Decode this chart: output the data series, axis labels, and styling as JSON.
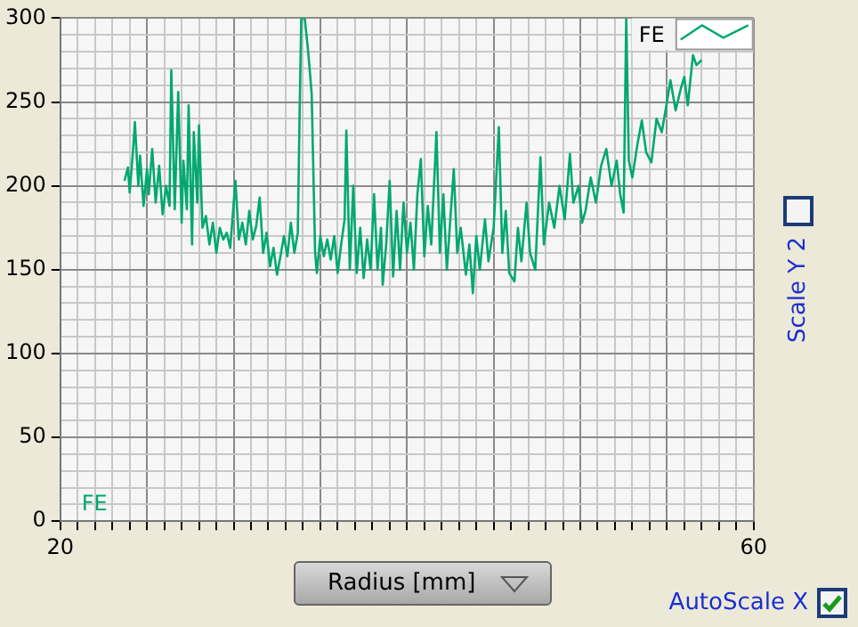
{
  "chart_data": {
    "type": "line",
    "xlabel": "Radius [mm]",
    "legend": "top right",
    "grid": true,
    "marker": "none",
    "line_style": "solid",
    "xlim": [
      20,
      60
    ],
    "ylim": [
      0,
      300
    ],
    "xticks": [
      20,
      {
        "value": 21,
        "label": null
      },
      {
        "value": 22,
        "label": null
      },
      {
        "value": 23,
        "label": null
      },
      {
        "value": 24,
        "label": null
      },
      {
        "value": 25,
        "label": null
      },
      {
        "value": 26,
        "label": null
      },
      {
        "value": 27,
        "label": null
      },
      {
        "value": 28,
        "label": null
      },
      {
        "value": 29,
        "label": null
      },
      {
        "value": 30,
        "label": null
      },
      {
        "value": 31,
        "label": null
      },
      {
        "value": 32,
        "label": null
      },
      {
        "value": 33,
        "label": null
      },
      {
        "value": 34,
        "label": null
      },
      {
        "value": 35,
        "label": null
      },
      {
        "value": 36,
        "label": null
      },
      {
        "value": 37,
        "label": null
      },
      {
        "value": 38,
        "label": null
      },
      {
        "value": 39,
        "label": null
      },
      {
        "value": 40,
        "label": null
      },
      {
        "value": 41,
        "label": null
      },
      {
        "value": 42,
        "label": null
      },
      {
        "value": 43,
        "label": null
      },
      {
        "value": 44,
        "label": null
      },
      {
        "value": 45,
        "label": null
      },
      {
        "value": 46,
        "label": null
      },
      {
        "value": 47,
        "label": null
      },
      {
        "value": 48,
        "label": null
      },
      {
        "value": 49,
        "label": null
      },
      {
        "value": 50,
        "label": null
      },
      {
        "value": 51,
        "label": null
      },
      {
        "value": 52,
        "label": null
      },
      {
        "value": 53,
        "label": null
      },
      {
        "value": 54,
        "label": null
      },
      {
        "value": 55,
        "label": null
      },
      {
        "value": 56,
        "label": null
      },
      {
        "value": 57,
        "label": null
      },
      {
        "value": 58,
        "label": null
      },
      {
        "value": 59,
        "label": null
      },
      60
    ],
    "yticks": [
      0,
      {
        "value": 10,
        "label": null
      },
      {
        "value": 20,
        "label": null
      },
      {
        "value": 30,
        "label": null
      },
      {
        "value": 40,
        "label": null
      },
      50,
      {
        "value": 60,
        "label": null
      },
      {
        "value": 70,
        "label": null
      },
      {
        "value": 80,
        "label": null
      },
      {
        "value": 90,
        "label": null
      },
      100,
      {
        "value": 110,
        "label": null
      },
      {
        "value": 120,
        "label": null
      },
      {
        "value": 130,
        "label": null
      },
      {
        "value": 140,
        "label": null
      },
      150,
      {
        "value": 160,
        "label": null
      },
      {
        "value": 170,
        "label": null
      },
      {
        "value": 180,
        "label": null
      },
      {
        "value": 190,
        "label": null
      },
      200,
      {
        "value": 210,
        "label": null
      },
      {
        "value": 220,
        "label": null
      },
      {
        "value": 230,
        "label": null
      },
      {
        "value": 240,
        "label": null
      },
      250,
      {
        "value": 260,
        "label": null
      },
      {
        "value": 270,
        "label": null
      },
      {
        "value": 280,
        "label": null
      },
      {
        "value": 290,
        "label": null
      },
      300
    ],
    "annotations": [
      "FE",
      "Scale Y 2",
      "AutoScale X"
    ],
    "series": [
      {
        "name": "FE",
        "color": "#00a870",
        "x": [
          23.7,
          23.9,
          24.0,
          24.2,
          24.3,
          24.5,
          24.6,
          24.8,
          25.0,
          25.1,
          25.3,
          25.5,
          25.7,
          25.9,
          26.1,
          26.3,
          26.4,
          26.6,
          26.8,
          27.0,
          27.1,
          27.3,
          27.4,
          27.6,
          27.7,
          27.9,
          28.0,
          28.2,
          28.4,
          28.6,
          28.8,
          29.0,
          29.2,
          29.4,
          29.6,
          29.8,
          30.1,
          30.3,
          30.5,
          30.7,
          30.9,
          31.1,
          31.3,
          31.5,
          31.7,
          31.9,
          32.1,
          32.3,
          32.5,
          32.7,
          32.9,
          33.1,
          33.3,
          33.5,
          33.7,
          33.8,
          33.9,
          34.1,
          34.3,
          34.5,
          34.7,
          34.8,
          35.0,
          35.2,
          35.4,
          35.6,
          35.8,
          36.0,
          36.2,
          36.4,
          36.5,
          36.7,
          36.9,
          37.1,
          37.3,
          37.5,
          37.7,
          37.9,
          38.1,
          38.3,
          38.5,
          38.6,
          38.8,
          39.0,
          39.2,
          39.4,
          39.6,
          39.8,
          40.0,
          40.2,
          40.4,
          40.6,
          40.8,
          41.0,
          41.2,
          41.4,
          41.7,
          41.9,
          42.1,
          42.3,
          42.5,
          42.7,
          42.9,
          43.1,
          43.4,
          43.6,
          43.8,
          44.0,
          44.2,
          44.5,
          44.7,
          45.0,
          45.3,
          45.5,
          45.7,
          45.9,
          46.2,
          46.4,
          46.6,
          46.9,
          47.1,
          47.4,
          47.7,
          47.9,
          48.2,
          48.5,
          48.8,
          49.1,
          49.4,
          49.6,
          49.9,
          50.1,
          50.3,
          50.6,
          50.9,
          51.2,
          51.5,
          51.8,
          52.1,
          52.3,
          52.5,
          52.65,
          52.8,
          53.0,
          53.3,
          53.55,
          53.8,
          54.1,
          54.4,
          54.7,
          55.0,
          55.2,
          55.5,
          55.8,
          56.0,
          56.2,
          56.5,
          56.7,
          57.0
        ],
        "values": [
          203,
          211,
          196,
          222,
          238,
          200,
          218,
          188,
          210,
          195,
          222,
          190,
          212,
          183,
          200,
          188,
          269,
          186,
          256,
          178,
          215,
          186,
          248,
          165,
          232,
          190,
          236,
          175,
          182,
          165,
          178,
          160,
          175,
          168,
          172,
          163,
          203,
          168,
          178,
          165,
          185,
          168,
          176,
          193,
          160,
          172,
          152,
          163,
          147,
          158,
          170,
          158,
          178,
          160,
          172,
          240,
          300,
          300,
          280,
          255,
          160,
          148,
          170,
          158,
          168,
          156,
          170,
          148,
          165,
          180,
          233,
          150,
          200,
          148,
          175,
          145,
          168,
          150,
          195,
          150,
          175,
          141,
          165,
          203,
          146,
          185,
          150,
          190,
          160,
          178,
          150,
          195,
          216,
          158,
          188,
          165,
          232,
          160,
          195,
          150,
          180,
          210,
          160,
          175,
          147,
          165,
          136,
          170,
          150,
          180,
          155,
          175,
          235,
          160,
          185,
          148,
          143,
          175,
          155,
          190,
          160,
          150,
          217,
          165,
          190,
          175,
          200,
          180,
          219,
          190,
          200,
          178,
          185,
          205,
          190,
          212,
          222,
          200,
          215,
          195,
          184,
          300,
          215,
          205,
          225,
          239,
          220,
          214,
          240,
          232,
          250,
          263,
          245,
          258,
          265,
          248,
          278,
          272,
          275
        ]
      }
    ]
  }
}
